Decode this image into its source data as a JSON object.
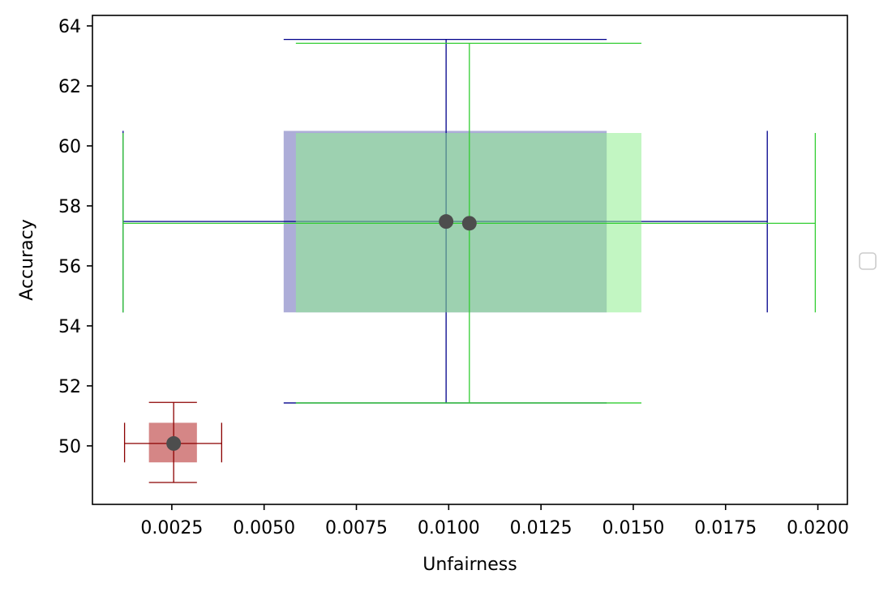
{
  "chart_data": {
    "type": "scatter",
    "title": "",
    "xlabel": "Unfairness",
    "ylabel": "Accuracy",
    "xlim": [
      0.00035,
      0.0208
    ],
    "ylim": [
      48.05,
      64.35
    ],
    "xticks": [
      0.0025,
      0.005,
      0.0075,
      0.01,
      0.0125,
      0.015,
      0.0175,
      0.02
    ],
    "xtick_labels": [
      "0.0025",
      "0.0050",
      "0.0075",
      "0.0100",
      "0.0125",
      "0.0150",
      "0.0175",
      "0.0200"
    ],
    "yticks": [
      50,
      52,
      54,
      56,
      58,
      60,
      62,
      64
    ],
    "ytick_labels": [
      "50",
      "52",
      "54",
      "56",
      "58",
      "60",
      "62",
      "64"
    ],
    "grid": false,
    "legend": {
      "placement": "right",
      "entries": []
    },
    "marker_color": "#4d4d4d",
    "series": [
      {
        "color": "#8b0000",
        "fill": "#b22222",
        "point": {
          "x": 0.00255,
          "y": 50.08
        },
        "box_x": [
          0.00188,
          0.00318
        ],
        "box_y": [
          49.45,
          50.77
        ],
        "range_x": [
          0.00122,
          0.00385
        ],
        "range_y": [
          48.78,
          51.45
        ]
      },
      {
        "color": "#00008b",
        "fill": "#6a6ab8",
        "point": {
          "x": 0.00993,
          "y": 57.48
        },
        "box_x": [
          0.00553,
          0.01428
        ],
        "box_y": [
          54.45,
          60.5
        ],
        "range_x": [
          0.00118,
          0.01863
        ],
        "range_y": [
          51.43,
          63.55
        ]
      },
      {
        "color": "#32cd32",
        "fill": "#90ee90",
        "point": {
          "x": 0.01056,
          "y": 57.42
        },
        "box_x": [
          0.00586,
          0.01522
        ],
        "box_y": [
          54.45,
          60.43
        ],
        "range_x": [
          0.00118,
          0.01993
        ],
        "range_y": [
          51.43,
          63.42
        ]
      }
    ]
  }
}
